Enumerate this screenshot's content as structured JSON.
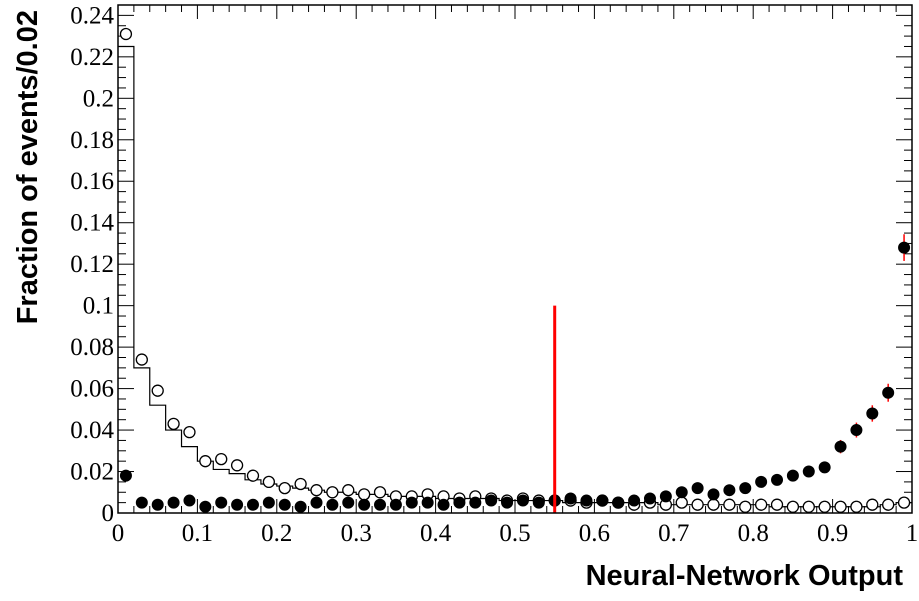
{
  "chart_data": {
    "type": "scatter",
    "title": "",
    "xlabel": "Neural-Network Output",
    "ylabel": "Fraction of events/0.02",
    "xlim": [
      0,
      1
    ],
    "ylim": [
      0,
      0.245
    ],
    "grid": false,
    "legend": "none",
    "bin_width": 0.02,
    "x_ticks": [
      "0",
      "0.1",
      "0.2",
      "0.3",
      "0.4",
      "0.5",
      "0.6",
      "0.7",
      "0.8",
      "0.9",
      "1"
    ],
    "y_ticks": [
      "0",
      "0.02",
      "0.04",
      "0.06",
      "0.08",
      "0.1",
      "0.12",
      "0.14",
      "0.16",
      "0.18",
      "0.2",
      "0.22",
      "0.24"
    ],
    "x": [
      0.01,
      0.03,
      0.05,
      0.07,
      0.09,
      0.11,
      0.13,
      0.15,
      0.17,
      0.19,
      0.21,
      0.23,
      0.25,
      0.27,
      0.29,
      0.31,
      0.33,
      0.35,
      0.37,
      0.39,
      0.41,
      0.43,
      0.45,
      0.47,
      0.49,
      0.51,
      0.53,
      0.55,
      0.57,
      0.59,
      0.61,
      0.63,
      0.65,
      0.67,
      0.69,
      0.71,
      0.73,
      0.75,
      0.77,
      0.79,
      0.81,
      0.83,
      0.85,
      0.87,
      0.89,
      0.91,
      0.93,
      0.95,
      0.97,
      0.99
    ],
    "series": [
      {
        "marker": "open-circle",
        "values": [
          0.231,
          0.074,
          0.059,
          0.043,
          0.039,
          0.025,
          0.026,
          0.023,
          0.018,
          0.015,
          0.012,
          0.014,
          0.011,
          0.01,
          0.011,
          0.009,
          0.01,
          0.008,
          0.008,
          0.009,
          0.008,
          0.007,
          0.008,
          0.007,
          0.006,
          0.007,
          0.006,
          0.006,
          0.006,
          0.005,
          0.006,
          0.005,
          0.004,
          0.005,
          0.004,
          0.005,
          0.004,
          0.004,
          0.004,
          0.003,
          0.004,
          0.004,
          0.003,
          0.003,
          0.003,
          0.003,
          0.003,
          0.004,
          0.004,
          0.005
        ]
      },
      {
        "marker": "filled-circle",
        "values": [
          0.018,
          0.005,
          0.004,
          0.005,
          0.006,
          0.003,
          0.005,
          0.004,
          0.004,
          0.005,
          0.004,
          0.003,
          0.005,
          0.004,
          0.005,
          0.004,
          0.004,
          0.004,
          0.005,
          0.005,
          0.004,
          0.005,
          0.005,
          0.006,
          0.005,
          0.006,
          0.005,
          0.006,
          0.007,
          0.006,
          0.006,
          0.005,
          0.006,
          0.007,
          0.008,
          0.01,
          0.012,
          0.009,
          0.011,
          0.012,
          0.015,
          0.016,
          0.018,
          0.02,
          0.022,
          0.032,
          0.04,
          0.048,
          0.058,
          0.128
        ]
      },
      {
        "marker": "step-histogram",
        "values": [
          0.225,
          0.07,
          0.052,
          0.04,
          0.032,
          0.025,
          0.021,
          0.019,
          0.016,
          0.014,
          0.013,
          0.012,
          0.011,
          0.01,
          0.01,
          0.009,
          0.009,
          0.008,
          0.008,
          0.008,
          0.007,
          0.007,
          0.007,
          0.007,
          0.006,
          0.006,
          0.006,
          0.006,
          0.005,
          0.005,
          0.005,
          0.005,
          0.005,
          0.005,
          0.004,
          0.004,
          0.004,
          0.004,
          0.004,
          0.004,
          0.004,
          0.003,
          0.003,
          0.003,
          0.003,
          0.003,
          0.003,
          0.003,
          0.004,
          0.005
        ]
      }
    ],
    "cut_line": {
      "x": 0.55,
      "y_top": 0.1,
      "color": "#ff0000"
    },
    "colors": {
      "axis": "#000000",
      "markers": "#000000",
      "error_bars": "#ff0000",
      "cut_line": "#ff0000"
    }
  }
}
